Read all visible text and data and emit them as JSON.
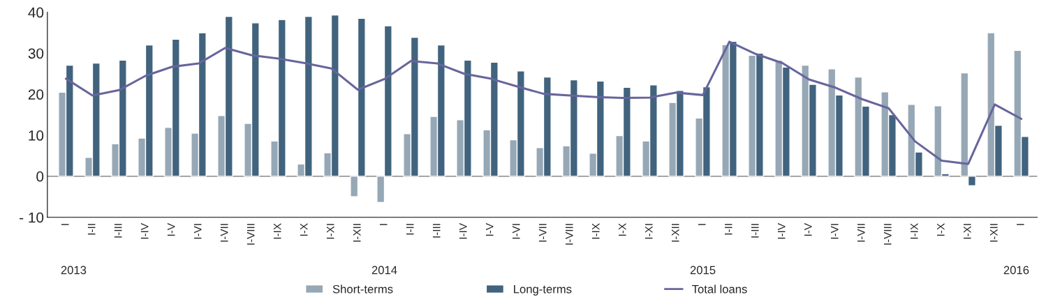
{
  "chart_data": {
    "type": "bar",
    "categories": [
      "I",
      "I-II",
      "I-III",
      "I-IV",
      "I-V",
      "I-VI",
      "I-VII",
      "I-VIII",
      "I-IX",
      "I-X",
      "I-XI",
      "I-XII",
      "I",
      "I-II",
      "I-III",
      "I-IV",
      "I-V",
      "I-VI",
      "I-VII",
      "I-VIII",
      "I-IX",
      "I-X",
      "I-XI",
      "I-XII",
      "I",
      "I-II",
      "I-III",
      "I-IV",
      "I-V",
      "I-VI",
      "I-VII",
      "I-VIII",
      "I-IX",
      "I-X",
      "I-XI",
      "I-XII",
      "I"
    ],
    "series": [
      {
        "name": "Short-terms",
        "color": "#96a7b5",
        "values": [
          20.5,
          4.6,
          7.9,
          9.3,
          11.9,
          10.5,
          14.8,
          12.9,
          8.6,
          3.0,
          5.7,
          -5.0,
          -6.4,
          10.4,
          14.6,
          13.8,
          11.3,
          8.9,
          7.0,
          7.4,
          5.6,
          9.9,
          8.6,
          18.0,
          14.2,
          32.1,
          29.5,
          28.3,
          27.1,
          26.2,
          24.2,
          20.6,
          17.5,
          17.2,
          25.2,
          35.0,
          30.7
        ]
      },
      {
        "name": "Long-terms",
        "color": "#41637e",
        "values": [
          27.1,
          27.6,
          28.3,
          32.0,
          33.4,
          35.0,
          39.0,
          37.4,
          38.2,
          39.0,
          39.3,
          38.5,
          36.7,
          33.9,
          32.0,
          28.3,
          27.8,
          25.7,
          24.2,
          23.5,
          23.2,
          21.7,
          22.3,
          20.9,
          21.8,
          32.9,
          30.0,
          26.6,
          22.4,
          19.8,
          17.1,
          15.0,
          5.9,
          0.6,
          -2.3,
          12.4,
          9.7
        ]
      },
      {
        "name": "Total loans",
        "type": "line",
        "color": "#67659c",
        "values": [
          23.8,
          19.7,
          21.0,
          24.5,
          26.7,
          27.5,
          31.3,
          29.5,
          28.7,
          27.6,
          26.3,
          21.1,
          23.7,
          28.1,
          27.5,
          25.0,
          23.8,
          21.9,
          20.1,
          19.7,
          19.3,
          19.1,
          19.2,
          20.4,
          19.8,
          32.8,
          29.8,
          27.6,
          23.6,
          21.6,
          18.8,
          16.6,
          8.5,
          3.8,
          3.0,
          17.5,
          14.0
        ]
      }
    ],
    "ylim": [
      -10,
      40
    ],
    "yticks": [
      {
        "value": -10,
        "label": "- 10"
      },
      0,
      10,
      20,
      30,
      40
    ],
    "ref_lines": [
      {
        "axis": "y",
        "value": 0,
        "color": "#999999"
      }
    ],
    "annotations": [
      "2013",
      "2014",
      "2015",
      "2016"
    ],
    "grid": false,
    "legend": "bottom"
  }
}
